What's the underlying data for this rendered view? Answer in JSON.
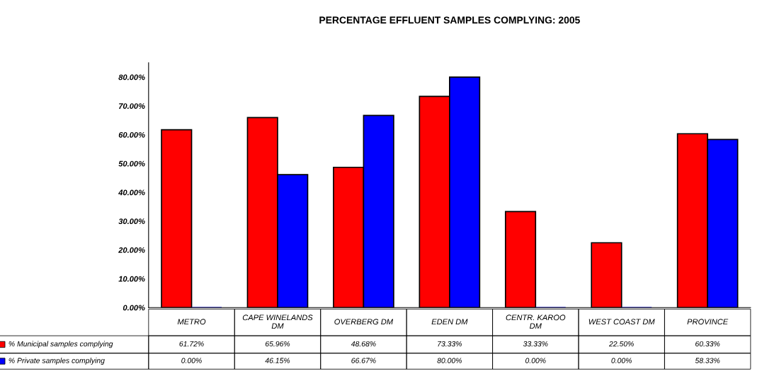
{
  "chart_data": {
    "type": "bar",
    "title": "PERCENTAGE EFFLUENT SAMPLES COMPLYING: 2005",
    "categories": [
      "METRO",
      "CAPE WINELANDS\nDM",
      "OVERBERG DM",
      "EDEN DM",
      "CENTR. KAROO\nDM",
      "WEST COAST DM",
      "PROVINCE"
    ],
    "series": [
      {
        "name": "% Municipal samples complying",
        "color": "#ff0000",
        "values": [
          61.72,
          65.96,
          48.68,
          73.33,
          33.33,
          22.5,
          60.33
        ],
        "value_labels": [
          "61.72%",
          "65.96%",
          "48.68%",
          "73.33%",
          "33.33%",
          "22.50%",
          "60.33%"
        ]
      },
      {
        "name": "% Private samples complying",
        "color": "#0000ff",
        "values": [
          0,
          46.15,
          66.67,
          80,
          0,
          0,
          58.33
        ],
        "value_labels": [
          "0.00%",
          "46.15%",
          "66.67%",
          "80.00%",
          "0.00%",
          "0.00%",
          "58.33%"
        ]
      }
    ],
    "ylim": [
      0,
      85
    ],
    "yticks": [
      {
        "value": 0,
        "label": "0.00%"
      },
      {
        "value": 10,
        "label": "10.00%"
      },
      {
        "value": 20,
        "label": "20.00%"
      },
      {
        "value": 30,
        "label": "30.00%"
      },
      {
        "value": 40,
        "label": "40.00%"
      },
      {
        "value": 50,
        "label": "50.00%"
      },
      {
        "value": 60,
        "label": "60.00%"
      },
      {
        "value": 70,
        "label": "70.00%"
      },
      {
        "value": 80,
        "label": "80.00%"
      }
    ],
    "grid": false,
    "legend": "bottom"
  }
}
